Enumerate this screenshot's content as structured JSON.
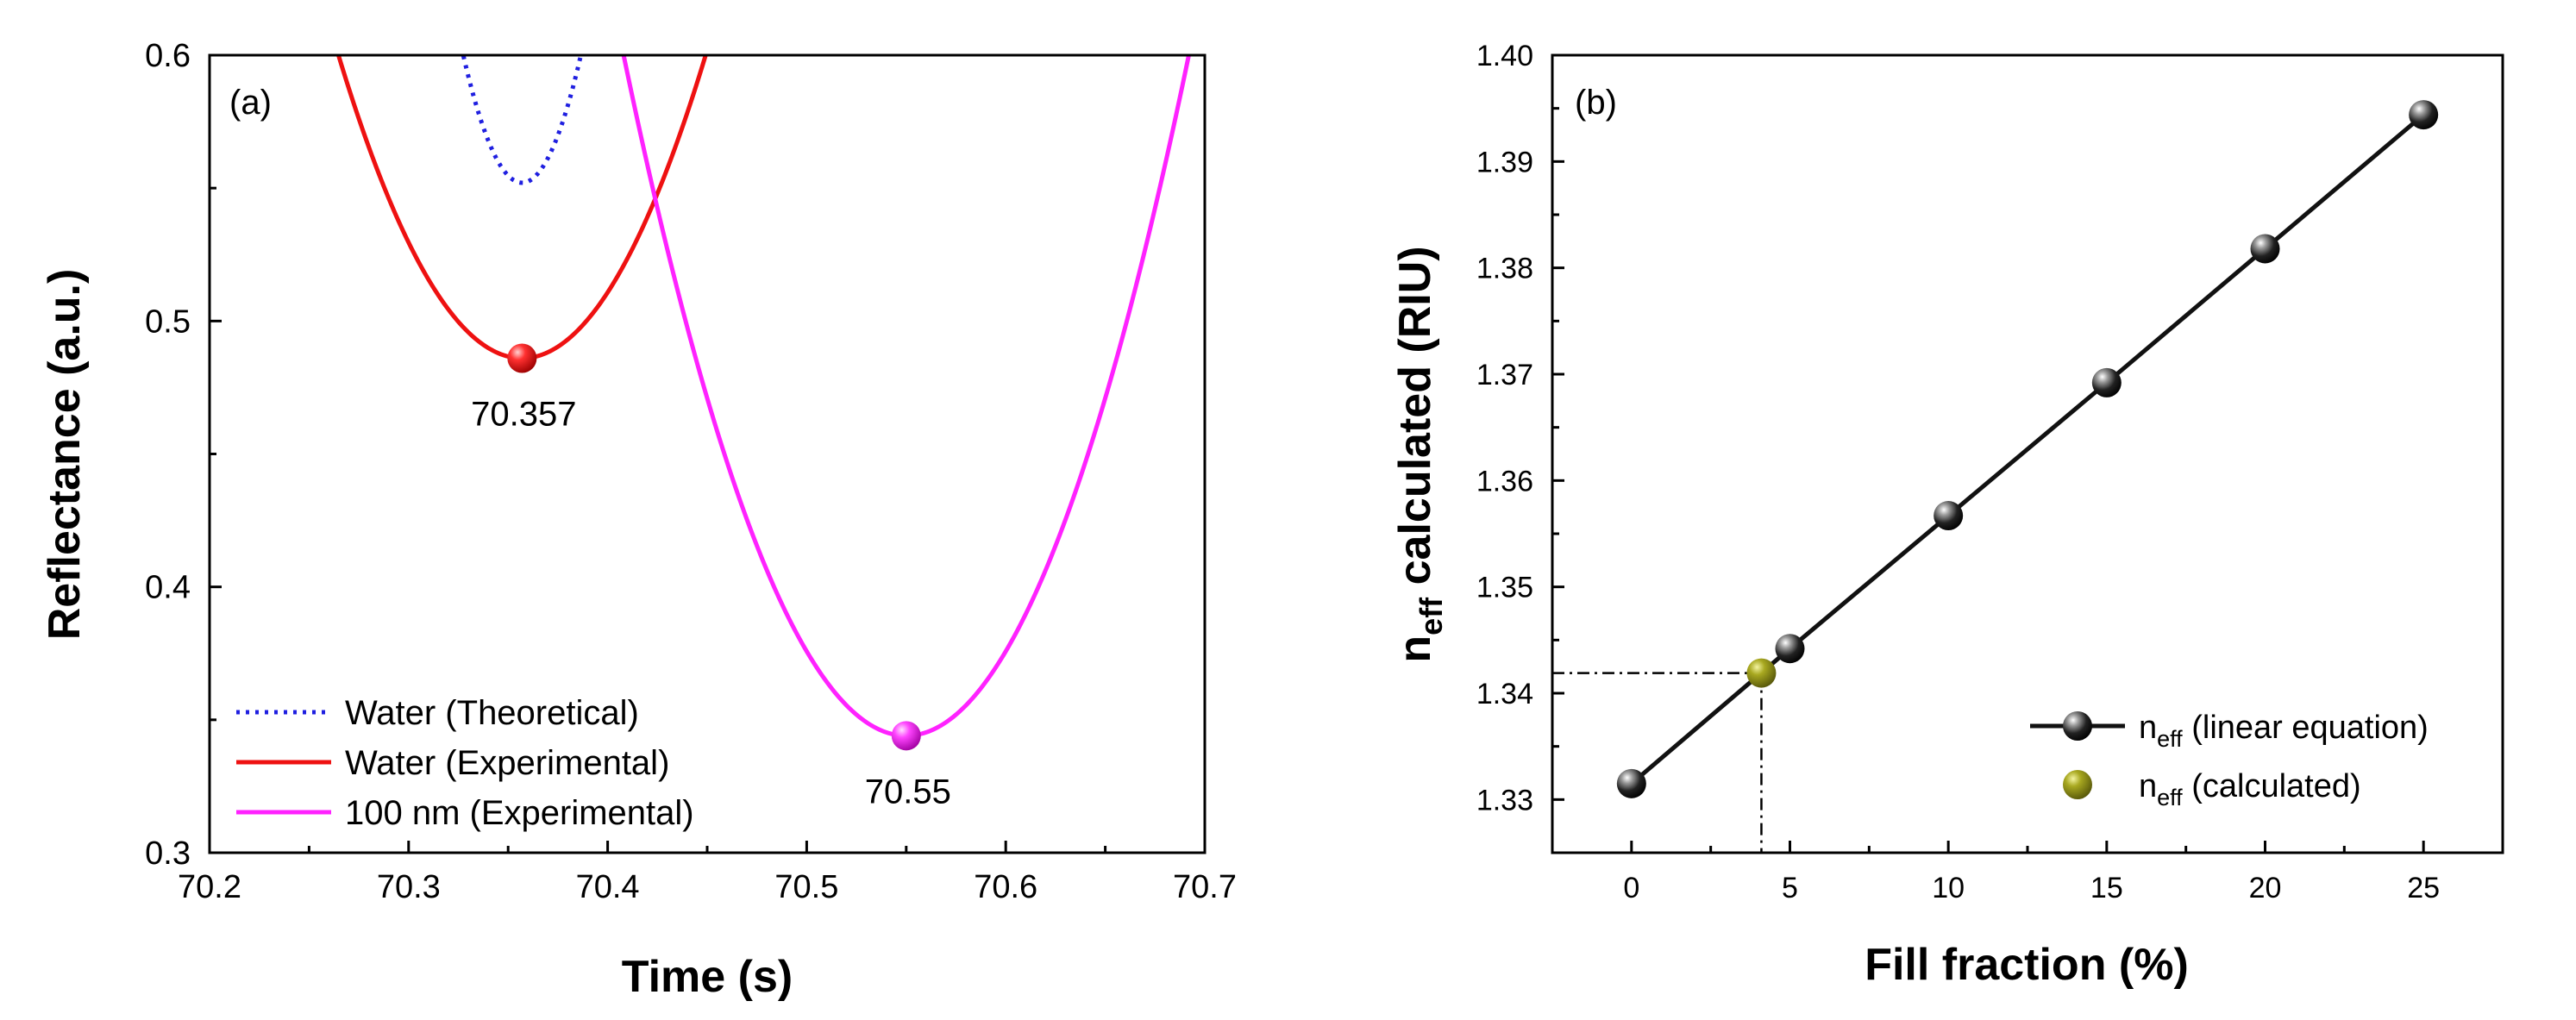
{
  "chart_data": [
    {
      "type": "line",
      "panel_label": "(a)",
      "xlabel": "Time (s)",
      "ylabel": "Reflectance (a.u.)",
      "xlim": [
        70.2,
        70.7
      ],
      "ylim": [
        0.3,
        0.6
      ],
      "xticks": [
        "70.2",
        "70.3",
        "70.4",
        "70.5",
        "70.6",
        "70.7"
      ],
      "yticks": [
        "0.3",
        "0.4",
        "0.5",
        "0.6"
      ],
      "series": [
        {
          "name": "Water (Theoretical)",
          "color": "#1f1fe0",
          "style": "dotted",
          "min_x": 70.357,
          "min_y": 0.552,
          "curvature": 55
        },
        {
          "name": "Water (Experimental)",
          "color": "#ee1111",
          "style": "solid",
          "min_x": 70.357,
          "min_y": 0.486,
          "curvature": 13.4
        },
        {
          "name": "100 nm (Experimental)",
          "color": "#ff22ff",
          "style": "solid",
          "min_x": 70.55,
          "min_y": 0.344,
          "curvature": 12.7
        }
      ],
      "annotations": [
        {
          "text": "70.357",
          "x": 70.357,
          "y": 0.486,
          "color": "#ee1111"
        },
        {
          "text": "70.55",
          "x": 70.55,
          "y": 0.344,
          "color": "#ff22ff"
        }
      ]
    },
    {
      "type": "line",
      "panel_label": "(b)",
      "xlabel": "Fill fraction (%)",
      "ylabel_main": "n",
      "ylabel_sub": "eff",
      "ylabel_rest": " calculated (RIU)",
      "xlim": [
        -2.5,
        27.5
      ],
      "ylim": [
        1.325,
        1.4
      ],
      "xticks": [
        "0",
        "5",
        "10",
        "15",
        "20",
        "25"
      ],
      "yticks": [
        "1.33",
        "1.34",
        "1.35",
        "1.36",
        "1.37",
        "1.38",
        "1.39",
        "1.40"
      ],
      "series": [
        {
          "name_main": "n",
          "name_sub": "eff",
          "name_rest": " (linear equation)",
          "color": "#111111",
          "x": [
            0,
            5,
            10,
            15,
            20,
            25
          ],
          "y": [
            1.3315,
            1.3442,
            1.3567,
            1.3692,
            1.3818,
            1.3944
          ]
        }
      ],
      "calculated_point": {
        "name_main": "n",
        "name_sub": "eff",
        "name_rest": " (calculated)",
        "color": "#8b8b12",
        "x": 4.1,
        "y": 1.3419
      }
    }
  ]
}
